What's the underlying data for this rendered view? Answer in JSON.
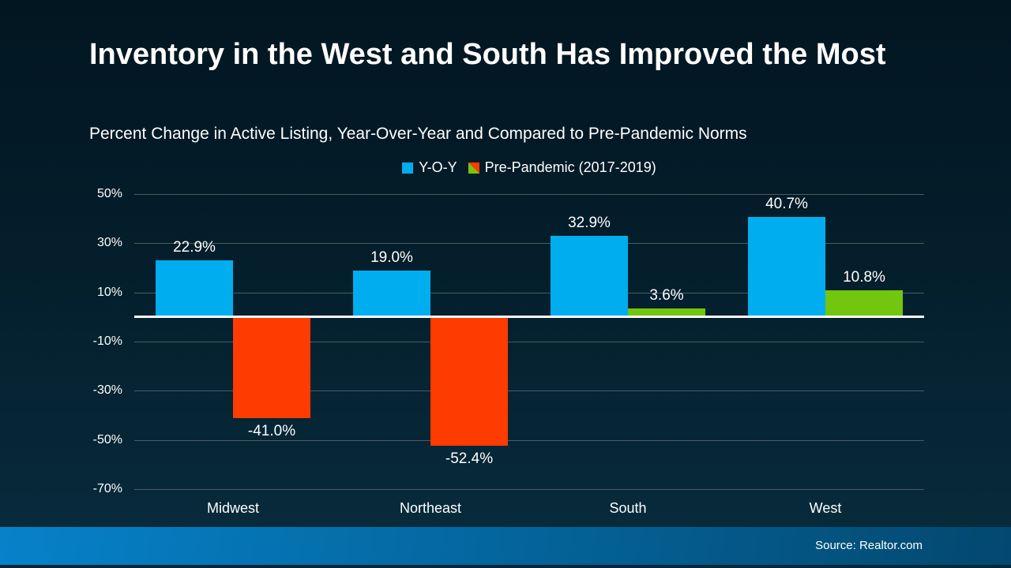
{
  "footer": {
    "source": "Source: Realtor.com"
  },
  "colors": {
    "background_top": "#021621",
    "background_bottom": "#082C3E",
    "footer_left": "#0682CA",
    "footer_right": "#03486F",
    "footer_edge": "#04273A",
    "gridline": "#4C5B64",
    "zero_line": "#FFFFFF",
    "text": "#FFFFFF",
    "yoy_blue": "#00AEEF",
    "prepandemic_green": "#72C60E",
    "prepandemic_red": "#FE3B01"
  },
  "chart_data": {
    "type": "bar",
    "title": "Inventory in the West and South Has Improved the Most",
    "subtitle": "Percent Change in Active Listing, Year-Over-Year and Compared to Pre-Pandemic Norms",
    "categories": [
      "Midwest",
      "Northeast",
      "South",
      "West"
    ],
    "series": [
      {
        "name": "Y-O-Y",
        "values": [
          22.9,
          19.0,
          32.9,
          40.7
        ],
        "color": "#00AEEF"
      },
      {
        "name": "Pre-Pandemic (2017-2019)",
        "values": [
          -41.0,
          -52.4,
          3.6,
          10.8
        ],
        "color_positive": "#72C60E",
        "color_negative": "#FE3B01"
      }
    ],
    "y_ticks": [
      50,
      30,
      10,
      -10,
      -30,
      -50,
      -70
    ],
    "y_tick_suffix": "%",
    "ylim": [
      -70,
      50
    ],
    "grid": true,
    "legend_position": "top",
    "value_label_format": "x.x%",
    "xlabel": "",
    "ylabel": ""
  }
}
